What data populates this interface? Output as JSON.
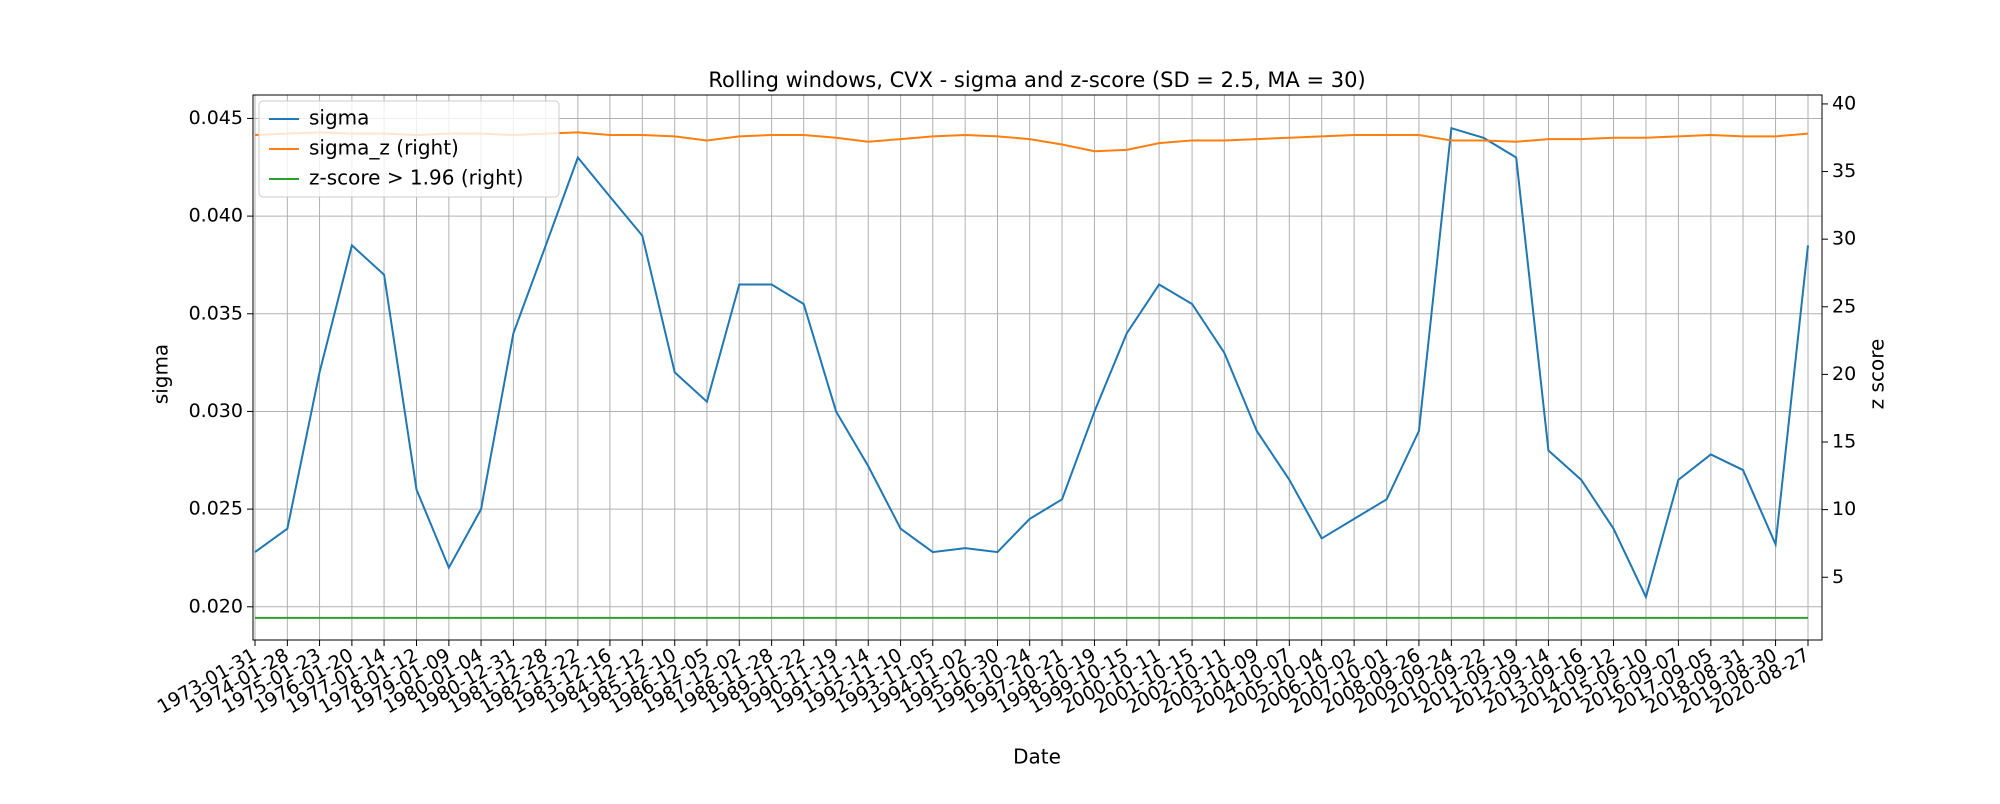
{
  "chart_data": {
    "type": "line",
    "title": "Rolling windows, CVX - sigma and z-score (SD = 2.5, MA = 30)",
    "xlabel": "Date",
    "ylabel": "sigma",
    "y2label": "z score",
    "x": [
      "1973-01-31",
      "1974-01-28",
      "1975-01-23",
      "1976-01-20",
      "1977-01-14",
      "1978-01-12",
      "1979-01-09",
      "1980-01-04",
      "1980-12-31",
      "1981-12-28",
      "1982-12-22",
      "1983-12-16",
      "1984-12-12",
      "1985-12-10",
      "1986-12-05",
      "1987-12-02",
      "1988-11-28",
      "1989-11-22",
      "1990-11-19",
      "1991-11-14",
      "1992-11-10",
      "1993-11-05",
      "1994-11-02",
      "1995-10-30",
      "1996-10-24",
      "1997-10-21",
      "1998-10-19",
      "1999-10-15",
      "2000-10-11",
      "2001-10-15",
      "2002-10-11",
      "2003-10-09",
      "2004-10-07",
      "2005-10-04",
      "2006-10-02",
      "2007-10-01",
      "2008-09-26",
      "2009-09-24",
      "2010-09-22",
      "2011-09-19",
      "2012-09-14",
      "2013-09-16",
      "2014-09-12",
      "2015-09-10",
      "2016-09-07",
      "2017-09-05",
      "2018-08-31",
      "2019-08-30",
      "2020-08-27"
    ],
    "xticks": [
      "1973-01-31",
      "1974-01-28",
      "1975-01-23",
      "1976-01-20",
      "1977-01-14",
      "1978-01-12",
      "1979-01-09",
      "1980-01-04",
      "1980-12-31",
      "1981-12-28",
      "1982-12-22",
      "1983-12-16",
      "1984-12-12",
      "1985-12-10",
      "1986-12-05",
      "1987-12-02",
      "1988-11-28",
      "1989-11-22",
      "1990-11-19",
      "1991-11-14",
      "1992-11-10",
      "1993-11-05",
      "1994-11-02",
      "1995-10-30",
      "1996-10-24",
      "1997-10-21",
      "1998-10-19",
      "1999-10-15",
      "2000-10-11",
      "2001-10-15",
      "2002-10-11",
      "2003-10-09",
      "2004-10-07",
      "2005-10-04",
      "2006-10-02",
      "2007-10-01",
      "2008-09-26",
      "2009-09-24",
      "2010-09-22",
      "2011-09-19",
      "2012-09-14",
      "2013-09-16",
      "2014-09-12",
      "2015-09-10",
      "2016-09-07",
      "2017-09-05",
      "2018-08-31",
      "2019-08-30",
      "2020-08-27"
    ],
    "series": [
      {
        "name": "sigma",
        "color": "#1f77b4",
        "values": [
          0.0228,
          0.024,
          0.032,
          0.0385,
          0.037,
          0.026,
          0.022,
          0.025,
          0.034,
          0.0385,
          0.043,
          0.041,
          0.039,
          0.032,
          0.0305,
          0.0365,
          0.0365,
          0.0355,
          0.03,
          0.0272,
          0.024,
          0.0228,
          0.023,
          0.0228,
          0.0245,
          0.0255,
          0.03,
          0.034,
          0.0365,
          0.0355,
          0.033,
          0.029,
          0.0265,
          0.0235,
          0.0245,
          0.0255,
          0.029,
          0.0445,
          0.044,
          0.043,
          0.028,
          0.0265,
          0.024,
          0.0205,
          0.0265,
          0.0278,
          0.027,
          0.0232,
          0.0385
        ]
      },
      {
        "name": "sigma_z (right)",
        "color": "#ff7f0e",
        "axis": "y2",
        "values": [
          37.7,
          37.8,
          37.9,
          37.8,
          37.8,
          37.7,
          37.8,
          37.8,
          37.7,
          37.8,
          37.9,
          37.7,
          37.7,
          37.6,
          37.3,
          37.6,
          37.7,
          37.7,
          37.5,
          37.2,
          37.4,
          37.6,
          37.7,
          37.6,
          37.4,
          37.0,
          36.5,
          36.6,
          37.1,
          37.3,
          37.3,
          37.4,
          37.5,
          37.6,
          37.7,
          37.7,
          37.7,
          37.3,
          37.3,
          37.2,
          37.4,
          37.4,
          37.5,
          37.5,
          37.6,
          37.7,
          37.6,
          37.6,
          37.8
        ]
      },
      {
        "name": "z-score > 1.96 (right)",
        "color": "#2ca02c",
        "axis": "y2",
        "values": [
          2,
          2,
          2,
          2,
          2,
          2,
          2,
          2,
          2,
          2,
          2,
          2,
          2,
          2,
          2,
          2,
          2,
          2,
          2,
          2,
          2,
          2,
          2,
          2,
          2,
          2,
          2,
          2,
          2,
          2,
          2,
          2,
          2,
          2,
          2,
          2,
          2,
          2,
          2,
          2,
          2,
          2,
          2,
          2,
          2,
          2,
          2,
          2,
          2
        ]
      }
    ],
    "ylim": [
      0.0183,
      0.0462
    ],
    "yticks": [
      {
        "value": 0.02,
        "label": "0.020"
      },
      0.025,
      {
        "value": 0.03,
        "label": "0.030"
      },
      0.035,
      {
        "value": 0.04,
        "label": "0.040"
      },
      0.045
    ],
    "y2lim": [
      0.36,
      40.66
    ],
    "y2ticks": [
      5,
      10,
      15,
      20,
      25,
      30,
      35,
      40
    ],
    "grid": true,
    "legend": "upper left"
  }
}
